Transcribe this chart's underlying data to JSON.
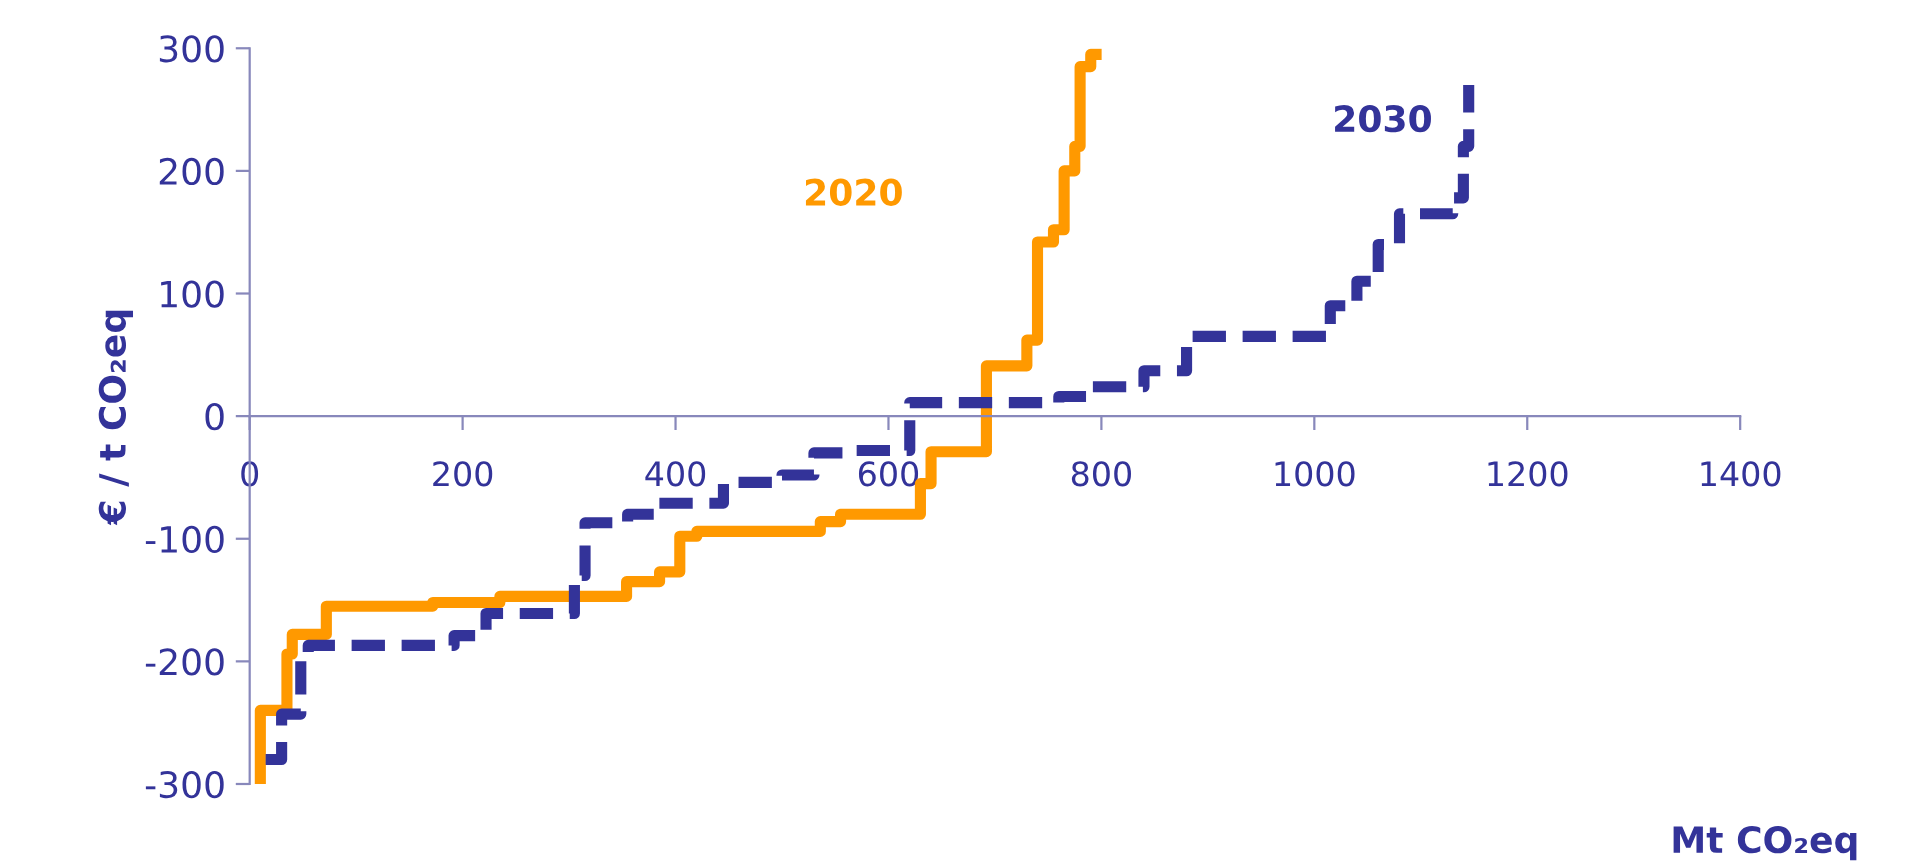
{
  "chart_data": {
    "type": "step",
    "xlabel": "Mt CO₂eq",
    "ylabel": "€ / t CO₂eq",
    "xlim": [
      0,
      1400
    ],
    "xticks": [
      0,
      200,
      400,
      600,
      800,
      1000,
      1200,
      1400
    ],
    "ylim": [
      -300,
      300
    ],
    "yticks": [
      -300,
      -200,
      -100,
      0,
      100,
      200,
      300
    ],
    "grid": false,
    "legend": false,
    "series": [
      {
        "name": "2020",
        "color": "#ff9900",
        "line_style": "solid",
        "x": [
          10,
          10,
          35,
          40,
          72,
          172,
          235,
          354,
          385,
          404,
          420,
          536,
          555,
          630,
          640,
          692,
          730,
          740,
          755,
          765,
          775,
          780,
          790,
          795
        ],
        "values": [
          -300,
          -240,
          -194,
          -178,
          -155,
          -152,
          -147,
          -135,
          -127,
          -98,
          -94,
          -86,
          -80,
          -55,
          -29,
          41,
          62,
          142,
          152,
          200,
          220,
          285,
          295,
          295
        ]
      },
      {
        "name": "2030",
        "color": "#333399",
        "line_style": "dashed",
        "x": [
          15,
          30,
          48,
          55,
          192,
          222,
          305,
          315,
          355,
          380,
          445,
          500,
          530,
          570,
          620,
          760,
          790,
          840,
          880,
          1015,
          1040,
          1060,
          1080,
          1130,
          1140,
          1145
        ],
        "values": [
          -280,
          -243,
          -199,
          -187,
          -179,
          -161,
          -130,
          -87,
          -80,
          -71,
          -54,
          -48,
          -30,
          -28,
          11,
          16,
          24,
          37,
          65,
          90,
          110,
          140,
          165,
          178,
          220,
          270
        ]
      }
    ]
  }
}
